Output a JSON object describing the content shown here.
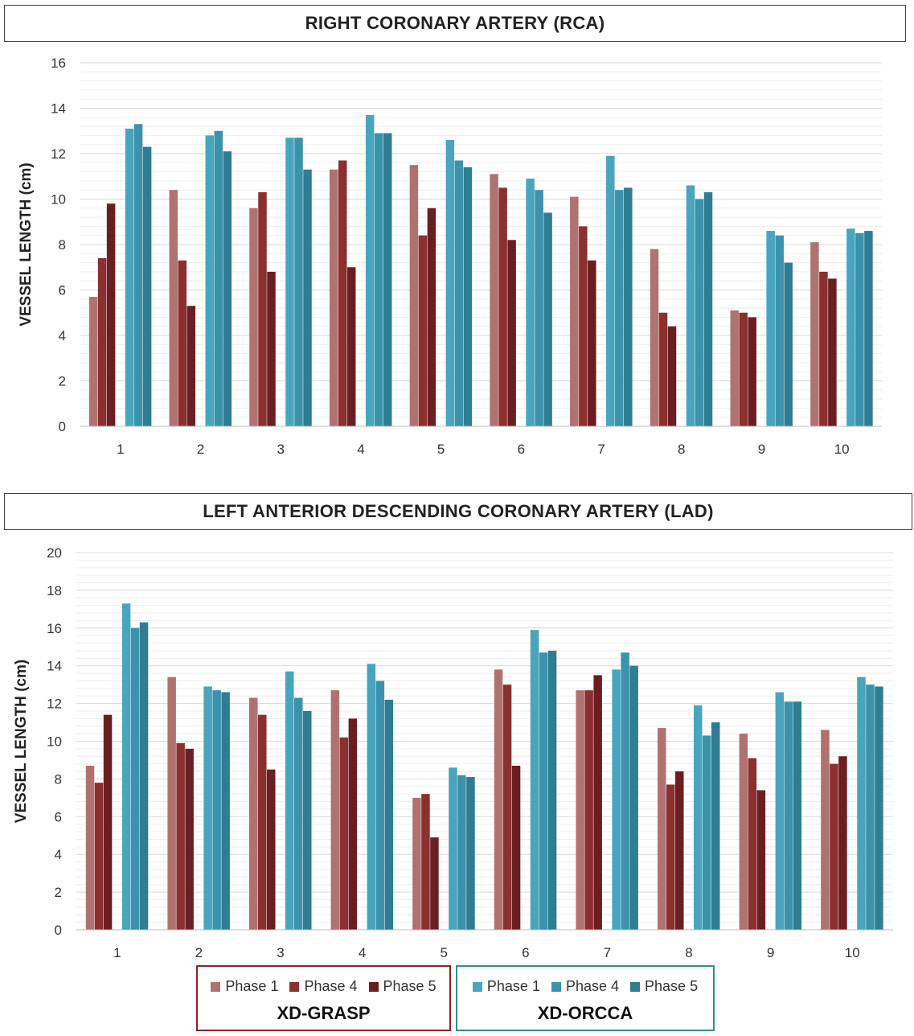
{
  "chart_data": [
    {
      "type": "bar",
      "title": "RIGHT CORONARY ARTERY (RCA)",
      "ylabel": "VESSEL LENGTH (cm)",
      "xlabel": "",
      "ylim": [
        0,
        16
      ],
      "yticks": [
        0,
        2,
        4,
        6,
        8,
        10,
        12,
        14,
        16
      ],
      "grid": true,
      "categories": [
        "1",
        "2",
        "3",
        "4",
        "5",
        "6",
        "7",
        "8",
        "9",
        "10"
      ],
      "series": [
        {
          "group": "XD-GRASP",
          "name": "Phase 1",
          "color": "#b07270",
          "values": [
            5.7,
            10.4,
            9.6,
            11.3,
            11.5,
            11.1,
            10.1,
            7.8,
            5.1,
            8.1
          ]
        },
        {
          "group": "XD-GRASP",
          "name": "Phase 4",
          "color": "#8b2f2f",
          "values": [
            7.4,
            7.3,
            10.3,
            11.7,
            8.4,
            10.5,
            8.8,
            5.0,
            5.0,
            6.8
          ]
        },
        {
          "group": "XD-GRASP",
          "name": "Phase 5",
          "color": "#6b1e22",
          "values": [
            9.8,
            5.3,
            6.8,
            7.0,
            9.6,
            8.2,
            7.3,
            4.4,
            4.8,
            6.5
          ]
        },
        {
          "group": "XD-ORCCA",
          "name": "Phase 1",
          "color": "#48a5bd",
          "values": [
            13.1,
            12.8,
            12.7,
            13.7,
            12.6,
            10.9,
            11.9,
            10.6,
            8.6,
            8.7
          ]
        },
        {
          "group": "XD-ORCCA",
          "name": "Phase 4",
          "color": "#3b93ab",
          "values": [
            13.3,
            13.0,
            12.7,
            12.9,
            11.7,
            10.4,
            10.4,
            10.0,
            8.4,
            8.5
          ]
        },
        {
          "group": "XD-ORCCA",
          "name": "Phase 5",
          "color": "#2f7d92",
          "values": [
            12.3,
            12.1,
            11.3,
            12.9,
            11.4,
            9.4,
            10.5,
            10.3,
            7.2,
            8.6
          ]
        }
      ]
    },
    {
      "type": "bar",
      "title": "LEFT ANTERIOR DESCENDING CORONARY ARTERY (LAD)",
      "ylabel": "VESSEL LENGTH (cm)",
      "xlabel": "",
      "ylim": [
        0,
        20
      ],
      "yticks": [
        0,
        2,
        4,
        6,
        8,
        10,
        12,
        14,
        16,
        18,
        20
      ],
      "grid": true,
      "categories": [
        "1",
        "2",
        "3",
        "4",
        "5",
        "6",
        "7",
        "8",
        "9",
        "10"
      ],
      "series": [
        {
          "group": "XD-GRASP",
          "name": "Phase 1",
          "color": "#b07270",
          "values": [
            8.7,
            13.4,
            12.3,
            12.7,
            7.0,
            13.8,
            12.7,
            10.7,
            10.4,
            10.6
          ]
        },
        {
          "group": "XD-GRASP",
          "name": "Phase 4",
          "color": "#8b2f2f",
          "values": [
            7.8,
            9.9,
            11.4,
            10.2,
            7.2,
            13.0,
            12.7,
            7.7,
            9.1,
            8.8
          ]
        },
        {
          "group": "XD-GRASP",
          "name": "Phase 5",
          "color": "#6b1e22",
          "values": [
            11.4,
            9.6,
            8.5,
            11.2,
            4.9,
            8.7,
            13.5,
            8.4,
            7.4,
            9.2
          ]
        },
        {
          "group": "XD-ORCCA",
          "name": "Phase 1",
          "color": "#48a5bd",
          "values": [
            17.3,
            12.9,
            13.7,
            14.1,
            8.6,
            15.9,
            13.8,
            11.9,
            12.6,
            13.4
          ]
        },
        {
          "group": "XD-ORCCA",
          "name": "Phase 4",
          "color": "#3b93ab",
          "values": [
            16.0,
            12.7,
            12.3,
            13.2,
            8.2,
            14.7,
            14.7,
            10.3,
            12.1,
            13.0
          ]
        },
        {
          "group": "XD-ORCCA",
          "name": "Phase 5",
          "color": "#2f7d92",
          "values": [
            16.3,
            12.6,
            11.6,
            12.2,
            8.1,
            14.8,
            14.0,
            11.0,
            12.1,
            12.9
          ]
        }
      ]
    }
  ],
  "legend": {
    "groups": [
      {
        "label": "XD-GRASP",
        "border_color": "#8b2424",
        "items": [
          {
            "label": "Phase 1",
            "color": "#b07270"
          },
          {
            "label": "Phase 4",
            "color": "#8b2f2f"
          },
          {
            "label": "Phase 5",
            "color": "#6b1e22"
          }
        ]
      },
      {
        "label": "XD-ORCCA",
        "border_color": "#2e9090",
        "items": [
          {
            "label": "Phase 1",
            "color": "#48a5bd"
          },
          {
            "label": "Phase 4",
            "color": "#3b93ab"
          },
          {
            "label": "Phase 5",
            "color": "#2f7d92"
          }
        ]
      }
    ]
  }
}
